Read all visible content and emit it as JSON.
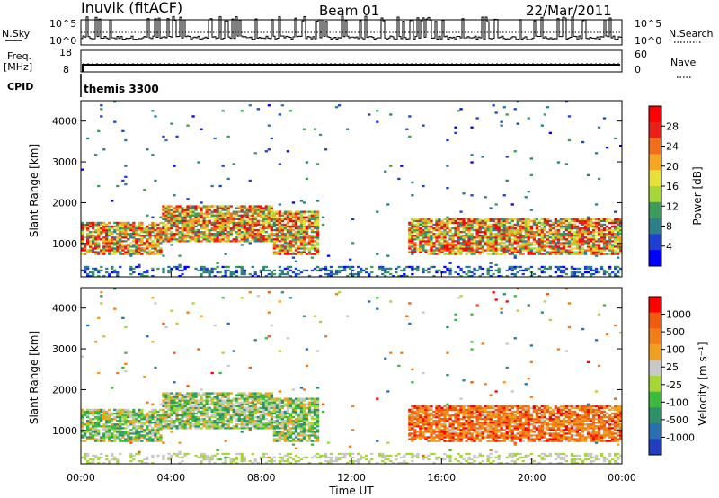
{
  "header": {
    "station": "Inuvik (fitACF)",
    "beam": "Beam 01",
    "date": "22/Mar/2011"
  },
  "colors": {
    "power_scale": [
      "#0000ff",
      "#1f3fd0",
      "#2e7d8a",
      "#3c9a5a",
      "#a6d63a",
      "#e8e03a",
      "#f5a623",
      "#f06d1e",
      "#e8201a",
      "#ff0000"
    ],
    "velocity_scale": [
      "#1f3fbf",
      "#2a6fb0",
      "#2f8f6a",
      "#3dba3d",
      "#a6d63a",
      "#c8c8c8",
      "#f0a020",
      "#f07d18",
      "#f05a10",
      "#ff0000"
    ]
  },
  "chart_data": [
    {
      "type": "line",
      "panel": "noise",
      "left_label": "N.Sky",
      "right_label": "N.Search",
      "left_ticks": [
        "10^5",
        "10^0"
      ],
      "right_ticks": [
        "10^5",
        "10^0"
      ]
    },
    {
      "type": "line",
      "panel": "frequency",
      "left_label_line1": "Freq.",
      "left_label_line2": "[MHz]",
      "right_label": "Nave",
      "left_ticks": [
        "18",
        "8"
      ],
      "right_ticks": [
        "60",
        "0"
      ]
    },
    {
      "type": "table",
      "panel": "cpid",
      "label": "CPID",
      "value": "themis 3300"
    },
    {
      "type": "heatmap",
      "panel": "power",
      "ylabel": "Slant Range [km]",
      "yticks": [
        "4000",
        "3000",
        "2000",
        "1000"
      ],
      "ylim": [
        180,
        4500
      ],
      "colorbar_label": "Power [dB]",
      "colorbar_ticks": [
        "28",
        "24",
        "20",
        "16",
        "12",
        "8",
        "4"
      ],
      "clim": [
        0,
        32
      ],
      "echo_regions": [
        {
          "t0": 0.0,
          "t1": 3.5,
          "r0": 700,
          "r1": 1500
        },
        {
          "t0": 3.5,
          "t1": 8.5,
          "r0": 1000,
          "r1": 1900
        },
        {
          "t0": 8.5,
          "t1": 10.5,
          "r0": 700,
          "r1": 1800
        },
        {
          "t0": 14.5,
          "t1": 24.0,
          "r0": 700,
          "r1": 1600
        }
      ]
    },
    {
      "type": "heatmap",
      "panel": "velocity",
      "ylabel": "Slant Range [km]",
      "yticks": [
        "4000",
        "3000",
        "2000",
        "1000"
      ],
      "ylim": [
        180,
        4500
      ],
      "colorbar_label": "Velocity [m s⁻¹]",
      "colorbar_ticks": [
        "1000",
        "500",
        "100",
        "25",
        "-25",
        "-100",
        "-500",
        "-1000"
      ],
      "clim": [
        -1200,
        1200
      ],
      "xlabel": "Time UT",
      "xticks": [
        "00:00",
        "04:00",
        "08:00",
        "12:00",
        "16:00",
        "20:00",
        "00:00"
      ],
      "xlim": [
        0,
        24
      ]
    }
  ]
}
